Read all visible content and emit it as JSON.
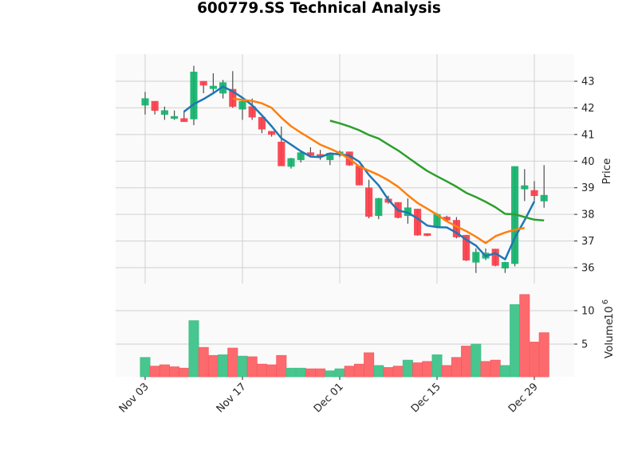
{
  "title": "600779.SS Technical Analysis",
  "colors": {
    "up": "#12b36c",
    "down": "#fc3d49",
    "up_volume": "#48c68f",
    "down_volume": "#fd6a6e",
    "wick": "#4d4d4d",
    "ma5": "#1f77b4",
    "ma10": "#ff7f0e",
    "ma20": "#2ca02c",
    "grid": "#d0d0d0",
    "panel_bg": "#fafafa"
  },
  "chart_data": [
    {
      "type": "candlestick",
      "title": "600779.SS Technical Analysis",
      "ylabel": "Price",
      "ylim": [
        35.6,
        44.0
      ],
      "yticks": [
        36,
        37,
        38,
        39,
        40,
        41,
        42,
        43
      ],
      "xticks": [
        "Nov 03",
        "Nov 17",
        "Dec 01",
        "Dec 15",
        "Dec 29"
      ],
      "xtick_index": [
        0,
        10,
        20,
        30,
        40
      ],
      "grid": true,
      "candles": [
        {
          "o": 42.1,
          "h": 42.6,
          "l": 41.75,
          "c": 42.35
        },
        {
          "o": 42.25,
          "h": 42.25,
          "l": 41.75,
          "c": 41.9
        },
        {
          "o": 41.75,
          "h": 42.05,
          "l": 41.55,
          "c": 41.9
        },
        {
          "o": 41.6,
          "h": 41.9,
          "l": 41.55,
          "c": 41.68
        },
        {
          "o": 41.6,
          "h": 41.9,
          "l": 41.48,
          "c": 41.48
        },
        {
          "o": 41.58,
          "h": 43.58,
          "l": 41.35,
          "c": 43.35
        },
        {
          "o": 43.0,
          "h": 43.0,
          "l": 42.55,
          "c": 42.85
        },
        {
          "o": 42.72,
          "h": 43.3,
          "l": 42.55,
          "c": 42.82
        },
        {
          "o": 42.55,
          "h": 43.05,
          "l": 42.35,
          "c": 42.95
        },
        {
          "o": 42.7,
          "h": 43.38,
          "l": 42.0,
          "c": 42.05
        },
        {
          "o": 41.95,
          "h": 42.35,
          "l": 41.55,
          "c": 42.25
        },
        {
          "o": 42.05,
          "h": 42.35,
          "l": 41.55,
          "c": 41.65
        },
        {
          "o": 41.65,
          "h": 41.65,
          "l": 41.05,
          "c": 41.2
        },
        {
          "o": 41.12,
          "h": 41.12,
          "l": 40.92,
          "c": 41.0
        },
        {
          "o": 40.72,
          "h": 41.3,
          "l": 39.82,
          "c": 39.82
        },
        {
          "o": 39.8,
          "h": 40.12,
          "l": 39.72,
          "c": 40.1
        },
        {
          "o": 40.05,
          "h": 40.35,
          "l": 39.95,
          "c": 40.32
        },
        {
          "o": 40.32,
          "h": 40.52,
          "l": 40.15,
          "c": 40.22
        },
        {
          "o": 40.25,
          "h": 40.42,
          "l": 40.05,
          "c": 40.18
        },
        {
          "o": 40.05,
          "h": 40.3,
          "l": 39.85,
          "c": 40.3
        },
        {
          "o": 40.25,
          "h": 40.4,
          "l": 40.15,
          "c": 40.35
        },
        {
          "o": 40.35,
          "h": 40.35,
          "l": 39.82,
          "c": 39.85
        },
        {
          "o": 39.82,
          "h": 39.82,
          "l": 39.1,
          "c": 39.1
        },
        {
          "o": 39.0,
          "h": 39.3,
          "l": 37.85,
          "c": 37.92
        },
        {
          "o": 37.95,
          "h": 38.62,
          "l": 37.82,
          "c": 38.6
        },
        {
          "o": 38.58,
          "h": 38.7,
          "l": 38.4,
          "c": 38.45
        },
        {
          "o": 38.45,
          "h": 38.45,
          "l": 37.85,
          "c": 37.88
        },
        {
          "o": 37.95,
          "h": 38.6,
          "l": 37.65,
          "c": 38.25
        },
        {
          "o": 38.2,
          "h": 38.2,
          "l": 37.2,
          "c": 37.22
        },
        {
          "o": 37.28,
          "h": 37.28,
          "l": 37.18,
          "c": 37.2
        },
        {
          "o": 37.52,
          "h": 38.05,
          "l": 37.52,
          "c": 38.0
        },
        {
          "o": 37.9,
          "h": 37.95,
          "l": 37.7,
          "c": 37.78
        },
        {
          "o": 37.78,
          "h": 37.9,
          "l": 37.1,
          "c": 37.15
        },
        {
          "o": 37.22,
          "h": 37.22,
          "l": 36.25,
          "c": 36.28
        },
        {
          "o": 36.2,
          "h": 36.72,
          "l": 35.8,
          "c": 36.58
        },
        {
          "o": 36.35,
          "h": 36.72,
          "l": 36.28,
          "c": 36.55
        },
        {
          "o": 36.7,
          "h": 36.7,
          "l": 36.05,
          "c": 36.08
        },
        {
          "o": 35.98,
          "h": 36.22,
          "l": 35.8,
          "c": 36.2
        },
        {
          "o": 36.15,
          "h": 39.8,
          "l": 36.05,
          "c": 39.8
        },
        {
          "o": 38.95,
          "h": 39.7,
          "l": 38.5,
          "c": 39.08
        },
        {
          "o": 38.9,
          "h": 39.25,
          "l": 38.5,
          "c": 38.7
        },
        {
          "o": 38.5,
          "h": 39.85,
          "l": 38.25,
          "c": 38.72
        }
      ],
      "moving_averages": [
        {
          "name": "MA5",
          "color_key": "ma5",
          "start": 4,
          "values": [
            41.86,
            42.14,
            42.33,
            42.55,
            42.8,
            42.62,
            42.38,
            42.1,
            41.72,
            41.31,
            40.86,
            40.62,
            40.37,
            40.17,
            40.15,
            40.29,
            40.25,
            40.21,
            39.98,
            39.48,
            39.09,
            38.55,
            38.15,
            38.06,
            37.85,
            37.58,
            37.52,
            37.51,
            37.31,
            37.05,
            36.83,
            36.43,
            36.54,
            36.31,
            37.13,
            37.78,
            38.49
          ]
        },
        {
          "name": "MA10",
          "color_key": "ma10",
          "start": 9,
          "values": [
            42.35,
            42.3,
            42.26,
            42.17,
            42.0,
            41.63,
            41.31,
            41.07,
            40.85,
            40.62,
            40.47,
            40.3,
            40.08,
            39.8,
            39.64,
            39.48,
            39.28,
            39.04,
            38.72,
            38.43,
            38.21,
            37.99,
            37.74,
            37.55,
            37.37,
            37.16,
            36.92,
            37.18,
            37.32,
            37.42,
            37.49
          ]
        },
        {
          "name": "MA20",
          "color_key": "ma20",
          "start": 19,
          "values": [
            41.52,
            41.42,
            41.3,
            41.16,
            40.98,
            40.85,
            40.62,
            40.4,
            40.14,
            39.88,
            39.63,
            39.43,
            39.24,
            39.04,
            38.81,
            38.65,
            38.47,
            38.27,
            38.02,
            38.0,
            37.9,
            37.8,
            37.77
          ]
        }
      ]
    },
    {
      "type": "bar",
      "ylabel": "Volume",
      "ylabel_scale": "10^6",
      "ylim": [
        0,
        12.8
      ],
      "yticks": [
        5,
        10
      ],
      "values": [
        3.0,
        1.7,
        1.9,
        1.6,
        1.4,
        8.5,
        4.5,
        3.3,
        3.4,
        4.4,
        3.2,
        3.1,
        2.0,
        1.9,
        3.3,
        1.4,
        1.4,
        1.3,
        1.3,
        1.0,
        1.3,
        1.7,
        2.0,
        3.7,
        1.8,
        1.5,
        1.7,
        2.6,
        2.2,
        2.4,
        3.4,
        1.8,
        3.0,
        4.7,
        5.0,
        2.4,
        2.6,
        1.8,
        10.9,
        12.4,
        5.3,
        6.7
      ],
      "up": [
        true,
        false,
        false,
        false,
        false,
        true,
        false,
        false,
        true,
        false,
        true,
        false,
        false,
        false,
        false,
        true,
        true,
        false,
        false,
        true,
        true,
        false,
        false,
        false,
        true,
        false,
        false,
        true,
        false,
        false,
        true,
        false,
        false,
        false,
        true,
        false,
        false,
        true,
        true,
        false,
        false,
        false
      ]
    }
  ],
  "axes": {
    "price_label": "Price",
    "volume_label": "Volume",
    "volume_exponent_base": "10",
    "volume_exponent_power": "6"
  }
}
